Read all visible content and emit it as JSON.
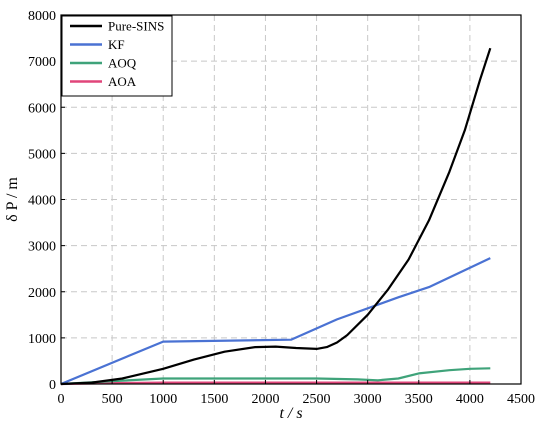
{
  "chart_data": {
    "type": "line",
    "xlabel": "t / s",
    "ylabel": "δ P / m",
    "xlim": [
      0,
      4500
    ],
    "ylim": [
      0,
      8000
    ],
    "xticks": [
      0,
      500,
      1000,
      1500,
      2000,
      2500,
      3000,
      3500,
      4000,
      4500
    ],
    "yticks": [
      0,
      1000,
      2000,
      3000,
      4000,
      5000,
      6000,
      7000,
      8000
    ],
    "grid": true,
    "legend_position": "top-left",
    "series": [
      {
        "name": "Pure-SINS",
        "color": "#000000",
        "x": [
          0,
          300,
          600,
          1000,
          1300,
          1600,
          1900,
          2100,
          2300,
          2500,
          2600,
          2700,
          2800,
          3000,
          3200,
          3400,
          3600,
          3800,
          3950,
          4100,
          4200
        ],
        "y": [
          0,
          30,
          120,
          330,
          530,
          700,
          800,
          810,
          780,
          760,
          800,
          900,
          1060,
          1500,
          2050,
          2700,
          3550,
          4600,
          5500,
          6600,
          7280
        ]
      },
      {
        "name": "KF",
        "color": "#4a72d3",
        "x": [
          0,
          1000,
          2250,
          2700,
          3300,
          3600,
          4200
        ],
        "y": [
          0,
          920,
          960,
          1400,
          1880,
          2100,
          2730
        ]
      },
      {
        "name": "AOQ",
        "color": "#3fa37a",
        "x": [
          0,
          500,
          1000,
          1500,
          2000,
          2500,
          2900,
          3100,
          3300,
          3500,
          3800,
          4000,
          4200
        ],
        "y": [
          0,
          60,
          120,
          120,
          120,
          120,
          100,
          80,
          120,
          230,
          300,
          330,
          340
        ]
      },
      {
        "name": "AOA",
        "color": "#e0457a",
        "x": [
          0,
          500,
          1000,
          1500,
          2000,
          2500,
          3000,
          3500,
          4000,
          4200
        ],
        "y": [
          0,
          20,
          30,
          30,
          30,
          30,
          30,
          30,
          30,
          30
        ]
      }
    ]
  }
}
